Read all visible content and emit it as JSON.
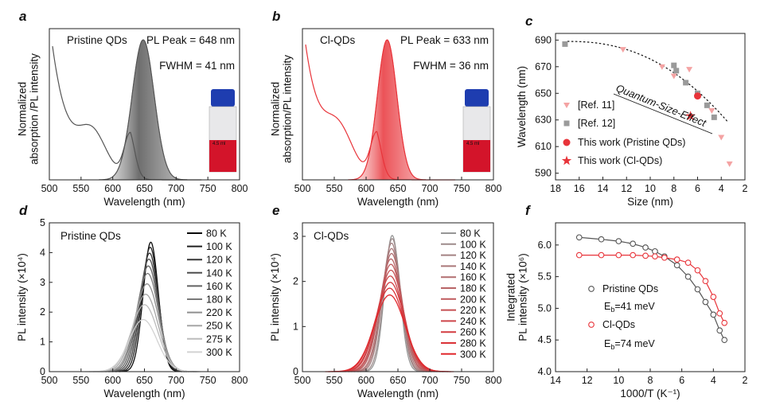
{
  "colors": {
    "pristine": "#555555",
    "cl": "#e8343a",
    "gray_marker": "#9a9a9a",
    "pink_marker": "#f4a3a3"
  },
  "chart_data": [
    {
      "id": "a",
      "type": "line",
      "panel_label": "a",
      "xlabel": "Wavelength (nm)",
      "ylabel": [
        "Normalized",
        "absorption /PL intensity"
      ],
      "xlim": [
        500,
        800
      ],
      "xticks": [
        500,
        550,
        600,
        650,
        700,
        750,
        800
      ],
      "annotations": [
        "Pristine QDs",
        "PL Peak = 648 nm",
        "FWHM = 41 nm"
      ],
      "pl_peak_nm": 648,
      "fwhm_nm": 41,
      "absorption_feature_nm": 628,
      "vial_label": "4.5 ml"
    },
    {
      "id": "b",
      "type": "line",
      "panel_label": "b",
      "xlabel": "Wavelength (nm)",
      "ylabel": [
        "Normalized",
        "absorption/PL intensity"
      ],
      "xlim": [
        500,
        800
      ],
      "xticks": [
        500,
        550,
        600,
        650,
        700,
        750,
        800
      ],
      "annotations": [
        "Cl-QDs",
        "PL Peak = 633 nm",
        "FWHM = 36 nm"
      ],
      "pl_peak_nm": 633,
      "fwhm_nm": 36,
      "absorption_feature_nm": 617,
      "vial_label": "4.5 ml"
    },
    {
      "id": "c",
      "type": "scatter",
      "panel_label": "c",
      "xlabel": "Size (nm)",
      "ylabel": "Wavelength (nm)",
      "xlim": [
        18,
        2
      ],
      "ylim": [
        585,
        695
      ],
      "xticks": [
        18,
        16,
        14,
        12,
        10,
        8,
        6,
        4,
        2
      ],
      "yticks": [
        590,
        610,
        630,
        650,
        670,
        690
      ],
      "annotation": "Quantum-Size-Effect",
      "series": [
        {
          "name": "[Ref. 11]",
          "marker": "triangle-down",
          "points": [
            [
              12.3,
              683
            ],
            [
              9.0,
              670
            ],
            [
              8.0,
              663
            ],
            [
              6.7,
              668
            ],
            [
              4.8,
              637
            ],
            [
              4.0,
              617
            ],
            [
              3.3,
              597
            ]
          ]
        },
        {
          "name": "[Ref. 12]",
          "marker": "square",
          "points": [
            [
              17.2,
              687
            ],
            [
              8.0,
              671
            ],
            [
              7.8,
              667
            ],
            [
              7.0,
              658
            ],
            [
              6.0,
              650
            ],
            [
              5.2,
              641
            ],
            [
              4.6,
              632
            ]
          ]
        },
        {
          "name": "This work (Pristine QDs)",
          "marker": "circle",
          "points": [
            [
              6.0,
              648
            ]
          ]
        },
        {
          "name": "This work (Cl-QDs)",
          "marker": "star",
          "points": [
            [
              6.6,
              633
            ]
          ]
        }
      ]
    },
    {
      "id": "d",
      "type": "line",
      "panel_label": "d",
      "title": "Pristine QDs",
      "xlabel": "Wavelength (nm)",
      "ylabel": "PL intensity (×10⁴)",
      "xlim": [
        500,
        800
      ],
      "ylim": [
        0,
        5
      ],
      "xticks": [
        500,
        550,
        600,
        650,
        700,
        750,
        800
      ],
      "yticks": [
        0,
        1,
        2,
        3,
        4,
        5
      ],
      "legend": [
        "80 K",
        "100 K",
        "120 K",
        "140 K",
        "160 K",
        "180 K",
        "220 K",
        "250 K",
        "275 K",
        "300 K"
      ],
      "peak_intensity": [
        4.35,
        4.18,
        3.98,
        3.78,
        3.55,
        3.3,
        2.95,
        2.6,
        2.25,
        1.75
      ],
      "peak_nm": [
        660,
        659,
        658,
        657,
        656,
        655,
        654,
        652,
        650,
        648
      ]
    },
    {
      "id": "e",
      "type": "line",
      "panel_label": "e",
      "title": "Cl-QDs",
      "xlabel": "Wavelength (nm)",
      "ylabel": "PL intensity (×10⁴)",
      "xlim": [
        500,
        800
      ],
      "ylim": [
        0,
        3.3
      ],
      "xticks": [
        500,
        550,
        600,
        650,
        700,
        750,
        800
      ],
      "yticks": [
        0,
        1,
        2,
        3
      ],
      "legend": [
        "80 K",
        "100 K",
        "120 K",
        "140 K",
        "160 K",
        "180 K",
        "200 K",
        "220 K",
        "240 K",
        "260 K",
        "280 K",
        "300 K"
      ],
      "peak_intensity": [
        3.02,
        2.95,
        2.85,
        2.73,
        2.62,
        2.5,
        2.38,
        2.25,
        2.12,
        1.98,
        1.85,
        1.7
      ],
      "peak_nm": [
        641,
        641,
        640,
        640,
        640,
        639,
        639,
        639,
        638,
        638,
        637,
        637
      ]
    },
    {
      "id": "f",
      "type": "scatter",
      "panel_label": "f",
      "xlabel": "1000/T (K⁻¹)",
      "ylabel": [
        "Integrated",
        "PL intensity (×10⁶)"
      ],
      "xlim": [
        14,
        2
      ],
      "ylim": [
        4.0,
        6.35
      ],
      "xticks": [
        14,
        12,
        10,
        8,
        6,
        4,
        2
      ],
      "yticks": [
        4.0,
        4.5,
        5.0,
        5.5,
        6.0
      ],
      "series": [
        {
          "name": "Pristine QDs",
          "eb_label": "E",
          "eb_sub": "b",
          "eb_value": "=41 meV",
          "points": [
            [
              12.5,
              6.12
            ],
            [
              11.1,
              6.09
            ],
            [
              10.0,
              6.06
            ],
            [
              9.1,
              6.02
            ],
            [
              8.3,
              5.96
            ],
            [
              7.7,
              5.9
            ],
            [
              7.1,
              5.82
            ],
            [
              6.3,
              5.68
            ],
            [
              5.6,
              5.5
            ],
            [
              5.0,
              5.3
            ],
            [
              4.5,
              5.1
            ],
            [
              4.0,
              4.9
            ],
            [
              3.6,
              4.65
            ],
            [
              3.3,
              4.5
            ]
          ]
        },
        {
          "name": "Cl-QDs",
          "eb_label": "E",
          "eb_sub": "b",
          "eb_value": "=74 meV",
          "points": [
            [
              12.5,
              5.84
            ],
            [
              11.1,
              5.84
            ],
            [
              10.0,
              5.84
            ],
            [
              9.1,
              5.84
            ],
            [
              8.3,
              5.83
            ],
            [
              7.7,
              5.82
            ],
            [
              7.1,
              5.8
            ],
            [
              6.3,
              5.77
            ],
            [
              5.6,
              5.72
            ],
            [
              5.0,
              5.6
            ],
            [
              4.5,
              5.43
            ],
            [
              4.0,
              5.18
            ],
            [
              3.6,
              4.92
            ],
            [
              3.3,
              4.77
            ]
          ]
        }
      ]
    }
  ]
}
